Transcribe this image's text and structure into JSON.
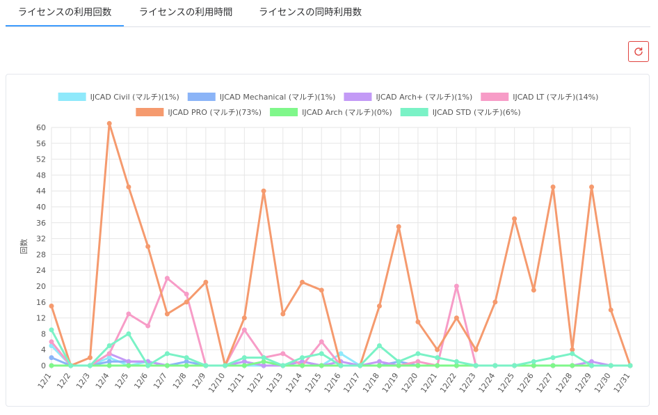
{
  "tabs": [
    {
      "label": "ライセンスの利用回数",
      "active": true
    },
    {
      "label": "ライセンスの利用時間",
      "active": false
    },
    {
      "label": "ライセンスの同時利用数",
      "active": false
    }
  ],
  "refresh_icon": "refresh-icon",
  "colors": {
    "accent": "#409eff",
    "refresh": "#e0433f"
  },
  "chart_data": {
    "type": "line",
    "ylabel": "回数",
    "xlabel": "",
    "ylim": [
      0,
      60
    ],
    "ytick_step": 4,
    "grid": true,
    "legend_position": "top-center",
    "categories": [
      "12/1",
      "12/2",
      "12/3",
      "12/4",
      "12/5",
      "12/6",
      "12/7",
      "12/8",
      "12/9",
      "12/10",
      "12/11",
      "12/12",
      "12/13",
      "12/14",
      "12/15",
      "12/16",
      "12/17",
      "12/18",
      "12/19",
      "12/20",
      "12/21",
      "12/22",
      "12/23",
      "12/24",
      "12/25",
      "12/26",
      "12/27",
      "12/28",
      "12/29",
      "12/30",
      "12/31"
    ],
    "series": [
      {
        "name": "IJCAD Civil (マルチ)(1%)",
        "color": "#8fe9fb",
        "values": [
          5,
          0,
          0,
          2,
          0,
          1,
          0,
          0,
          0,
          0,
          0,
          0,
          0,
          0,
          0,
          3,
          0,
          0,
          0,
          0,
          0,
          0,
          0,
          0,
          0,
          0,
          0,
          0,
          0,
          0,
          0
        ]
      },
      {
        "name": "IJCAD Mechanical (マルチ)(1%)",
        "color": "#8bb4f7",
        "values": [
          2,
          0,
          0,
          1,
          1,
          1,
          0,
          1,
          0,
          0,
          1,
          0,
          0,
          1,
          0,
          0,
          0,
          0,
          1,
          0,
          0,
          0,
          0,
          0,
          0,
          0,
          0,
          0,
          0,
          0,
          0
        ]
      },
      {
        "name": "IJCAD Arch+ (マルチ)(1%)",
        "color": "#c39af6",
        "values": [
          0,
          0,
          0,
          3,
          1,
          1,
          0,
          0,
          0,
          0,
          1,
          0,
          0,
          1,
          0,
          1,
          0,
          1,
          0,
          0,
          0,
          0,
          0,
          0,
          0,
          0,
          0,
          0,
          1,
          0,
          0
        ]
      },
      {
        "name": "IJCAD LT (マルチ)(14%)",
        "color": "#f79cc7",
        "values": [
          6,
          0,
          0,
          3,
          13,
          10,
          22,
          18,
          0,
          0,
          9,
          2,
          3,
          0,
          6,
          0,
          0,
          0,
          0,
          1,
          0,
          20,
          0,
          0,
          0,
          0,
          0,
          0,
          0,
          0,
          0
        ]
      },
      {
        "name": "IJCAD PRO (マルチ)(73%)",
        "color": "#f59a6e",
        "values": [
          15,
          0,
          2,
          61,
          45,
          30,
          13,
          16,
          21,
          0,
          12,
          44,
          13,
          21,
          19,
          0,
          0,
          15,
          35,
          11,
          4,
          12,
          4,
          16,
          37,
          19,
          45,
          4,
          45,
          14,
          0
        ]
      },
      {
        "name": "IJCAD Arch (マルチ)(0%)",
        "color": "#7ff78a",
        "values": [
          0,
          0,
          0,
          0,
          0,
          0,
          0,
          0,
          0,
          0,
          0,
          1,
          0,
          0,
          0,
          0,
          0,
          0,
          0,
          0,
          0,
          0,
          0,
          0,
          0,
          0,
          0,
          0,
          0,
          0,
          0
        ]
      },
      {
        "name": "IJCAD STD (マルチ)(6%)",
        "color": "#7af2c6",
        "values": [
          9,
          0,
          0,
          5,
          8,
          0,
          3,
          2,
          0,
          0,
          2,
          2,
          0,
          2,
          3,
          0,
          0,
          5,
          1,
          3,
          2,
          1,
          0,
          0,
          0,
          1,
          2,
          3,
          0,
          0,
          0
        ]
      }
    ]
  }
}
